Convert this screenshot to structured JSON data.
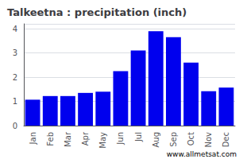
{
  "chart_data": {
    "type": "bar",
    "title": "Talkeetna : precipitation (inch)",
    "categories": [
      "Jan",
      "Feb",
      "Mar",
      "Apr",
      "May",
      "Jun",
      "Jul",
      "Aug",
      "Sep",
      "Oct",
      "Nov",
      "Dec"
    ],
    "values": [
      1.07,
      1.22,
      1.22,
      1.35,
      1.4,
      2.25,
      3.1,
      3.9,
      3.65,
      2.6,
      1.42,
      1.57
    ],
    "color": "#0000EE",
    "ylim": [
      0,
      4.2
    ],
    "yticks": [
      0,
      1,
      2,
      3,
      4
    ],
    "grid": true,
    "annotations": [
      "www.allmetsat.com"
    ]
  }
}
